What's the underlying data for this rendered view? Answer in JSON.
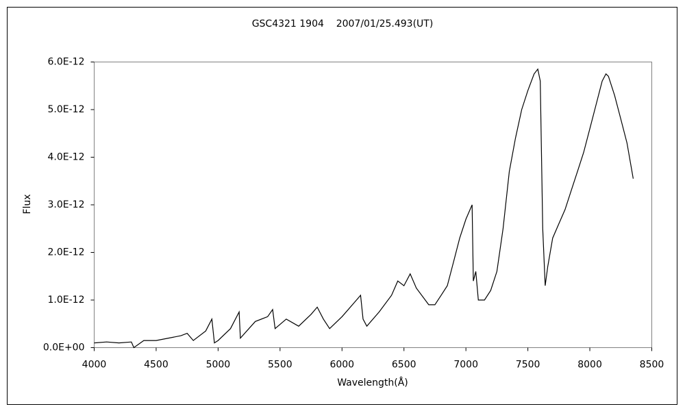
{
  "chart_data": {
    "type": "line",
    "title": "GSC4321 1904    2007/01/25.493(UT)",
    "x_label": "Wavelength(Å)",
    "y_label": "Flux",
    "xlim": [
      4000,
      8500
    ],
    "xticks": [
      4000,
      4500,
      5000,
      5500,
      6000,
      6500,
      7000,
      7500,
      8000,
      8500
    ],
    "ylim": [
      0,
      6e-12
    ],
    "yticks": [
      {
        "value": 0,
        "label": "0.0E+00"
      },
      {
        "value": 1e-12,
        "label": "1.0E-12"
      },
      {
        "value": 2e-12,
        "label": "2.0E-12"
      },
      {
        "value": 3e-12,
        "label": "3.0E-12"
      },
      {
        "value": 4e-12,
        "label": "4.0E-12"
      },
      {
        "value": 5e-12,
        "label": "5.0E-12"
      },
      {
        "value": 6e-12,
        "label": "6.0E-12"
      }
    ],
    "series": [
      {
        "color": "#000000",
        "x": [
          4000,
          4100,
          4200,
          4300,
          4320,
          4400,
          4500,
          4600,
          4700,
          4750,
          4800,
          4900,
          4950,
          4970,
          5000,
          5100,
          5170,
          5180,
          5300,
          5400,
          5440,
          5460,
          5550,
          5650,
          5750,
          5800,
          5850,
          5900,
          6000,
          6100,
          6150,
          6170,
          6200,
          6300,
          6400,
          6450,
          6500,
          6550,
          6600,
          6700,
          6750,
          6800,
          6850,
          6900,
          6950,
          7000,
          7050,
          7060,
          7080,
          7100,
          7150,
          7200,
          7250,
          7300,
          7350,
          7400,
          7450,
          7500,
          7550,
          7580,
          7600,
          7620,
          7640,
          7660,
          7700,
          7750,
          7800,
          7850,
          7900,
          7950,
          8000,
          8050,
          8100,
          8130,
          8150,
          8200,
          8250,
          8300,
          8340,
          8350
        ],
        "values": [
          1e-13,
          1.2e-13,
          1e-13,
          1.2e-13,
          0,
          1.5e-13,
          1.5e-13,
          2e-13,
          2.5e-13,
          3e-13,
          1.5e-13,
          3.5e-13,
          6e-13,
          1e-13,
          1.5e-13,
          4e-13,
          7.5e-13,
          2e-13,
          5.5e-13,
          6.5e-13,
          8e-13,
          4e-13,
          6e-13,
          4.5e-13,
          7e-13,
          8.5e-13,
          6e-13,
          4e-13,
          6.5e-13,
          9.5e-13,
          1.1e-12,
          6e-13,
          4.5e-13,
          7.5e-13,
          1.1e-12,
          1.4e-12,
          1.3e-12,
          1.55e-12,
          1.25e-12,
          9e-13,
          9e-13,
          1.1e-12,
          1.3e-12,
          1.8e-12,
          2.3e-12,
          2.7e-12,
          3e-12,
          1.4e-12,
          1.6e-12,
          1e-12,
          1e-12,
          1.2e-12,
          1.6e-12,
          2.5e-12,
          3.7e-12,
          4.4e-12,
          5e-12,
          5.4e-12,
          5.75e-12,
          5.85e-12,
          5.6e-12,
          2.5e-12,
          1.3e-12,
          1.7e-12,
          2.3e-12,
          2.6e-12,
          2.9e-12,
          3.3e-12,
          3.7e-12,
          4.1e-12,
          4.6e-12,
          5.1e-12,
          5.6e-12,
          5.75e-12,
          5.7e-12,
          5.3e-12,
          4.8e-12,
          4.3e-12,
          3.7e-12,
          3.55e-12
        ]
      }
    ]
  }
}
